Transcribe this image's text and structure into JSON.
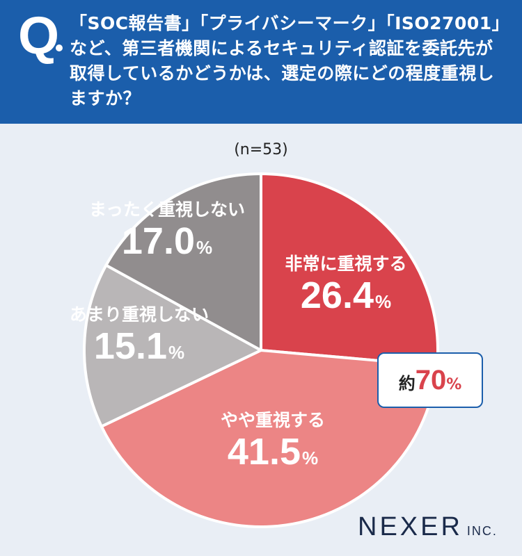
{
  "header": {
    "q_mark": "Q",
    "question": "「SOC報告書」「プライバシーマーク」「ISO27001」など、第三者機関によるセキュリティ認証を委託先が取得しているかどうかは、選定の際にどの程度重視しますか？"
  },
  "sample_size": "(n=53)",
  "chart_data": {
    "type": "pie",
    "unit": "%",
    "slices": [
      {
        "label": "非常に重視する",
        "value": 26.4,
        "display": "26.4",
        "color": "#d9434c"
      },
      {
        "label": "やや重視する",
        "value": 41.5,
        "display": "41.5",
        "color": "#ec8585"
      },
      {
        "label": "あまり重視しない",
        "value": 15.1,
        "display": "15.1",
        "color": "#b9b6b7"
      },
      {
        "label": "まったく重視しない",
        "value": 17.0,
        "display": "17.0",
        "color": "#918d8e"
      }
    ]
  },
  "callout": {
    "prefix": "約",
    "value": "70",
    "unit": "%"
  },
  "logo": {
    "name": "NEXER",
    "suffix": "INC."
  }
}
